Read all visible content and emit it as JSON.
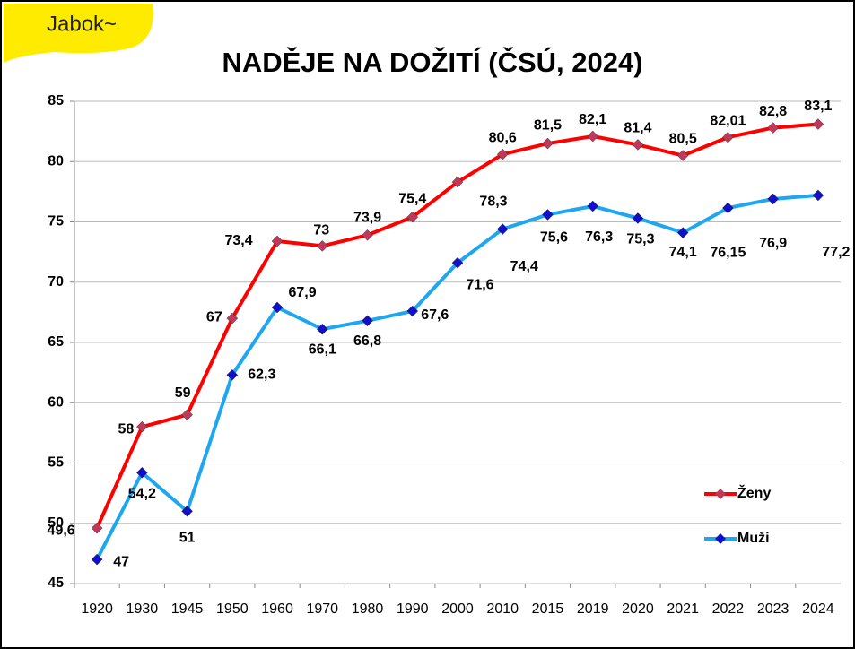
{
  "logo": "Jabok~",
  "chart_data": {
    "type": "line",
    "title": "NADĚJE NA DOŽITÍ (ČSÚ, 2024)",
    "categories": [
      "1920",
      "1930",
      "1945",
      "1950",
      "1960",
      "1970",
      "1980",
      "1990",
      "2000",
      "2010",
      "2015",
      "2019",
      "2020",
      "2021",
      "2022",
      "2023",
      "2024"
    ],
    "series": [
      {
        "name": "Ženy",
        "color": "#ff0000",
        "marker_color": "#c0395a",
        "values": [
          49.6,
          58,
          59,
          67,
          73.4,
          73,
          73.9,
          75.4,
          78.3,
          80.6,
          81.5,
          82.1,
          81.4,
          80.5,
          82.01,
          82.8,
          83.1
        ],
        "value_labels": [
          "49,6",
          "58",
          "59",
          "67",
          "73,4",
          "73",
          "73,9",
          "75,4",
          "78,3",
          "80,6",
          "81,5",
          "82,1",
          "81,4",
          "80,5",
          "82,01",
          "82,8",
          "83,1"
        ]
      },
      {
        "name": "Muži",
        "color": "#1ea7f0",
        "marker_color": "#1010c8",
        "values": [
          47,
          54.2,
          51,
          62.3,
          67.9,
          66.1,
          66.8,
          67.6,
          71.6,
          74.4,
          75.6,
          76.3,
          75.3,
          74.1,
          76.15,
          76.9,
          77.2
        ],
        "value_labels": [
          "47",
          "54,2",
          "51",
          "62,3",
          "67,9",
          "66,1",
          "66,8",
          "67,6",
          "71,6",
          "74,4",
          "75,6",
          "76,3",
          "75,3",
          "74,1",
          "76,15",
          "76,9",
          "77,2"
        ]
      }
    ],
    "ylim": [
      45,
      85
    ],
    "yticks": [
      45,
      50,
      55,
      60,
      65,
      70,
      75,
      80,
      85
    ],
    "grid": true,
    "legend": "lower right"
  }
}
